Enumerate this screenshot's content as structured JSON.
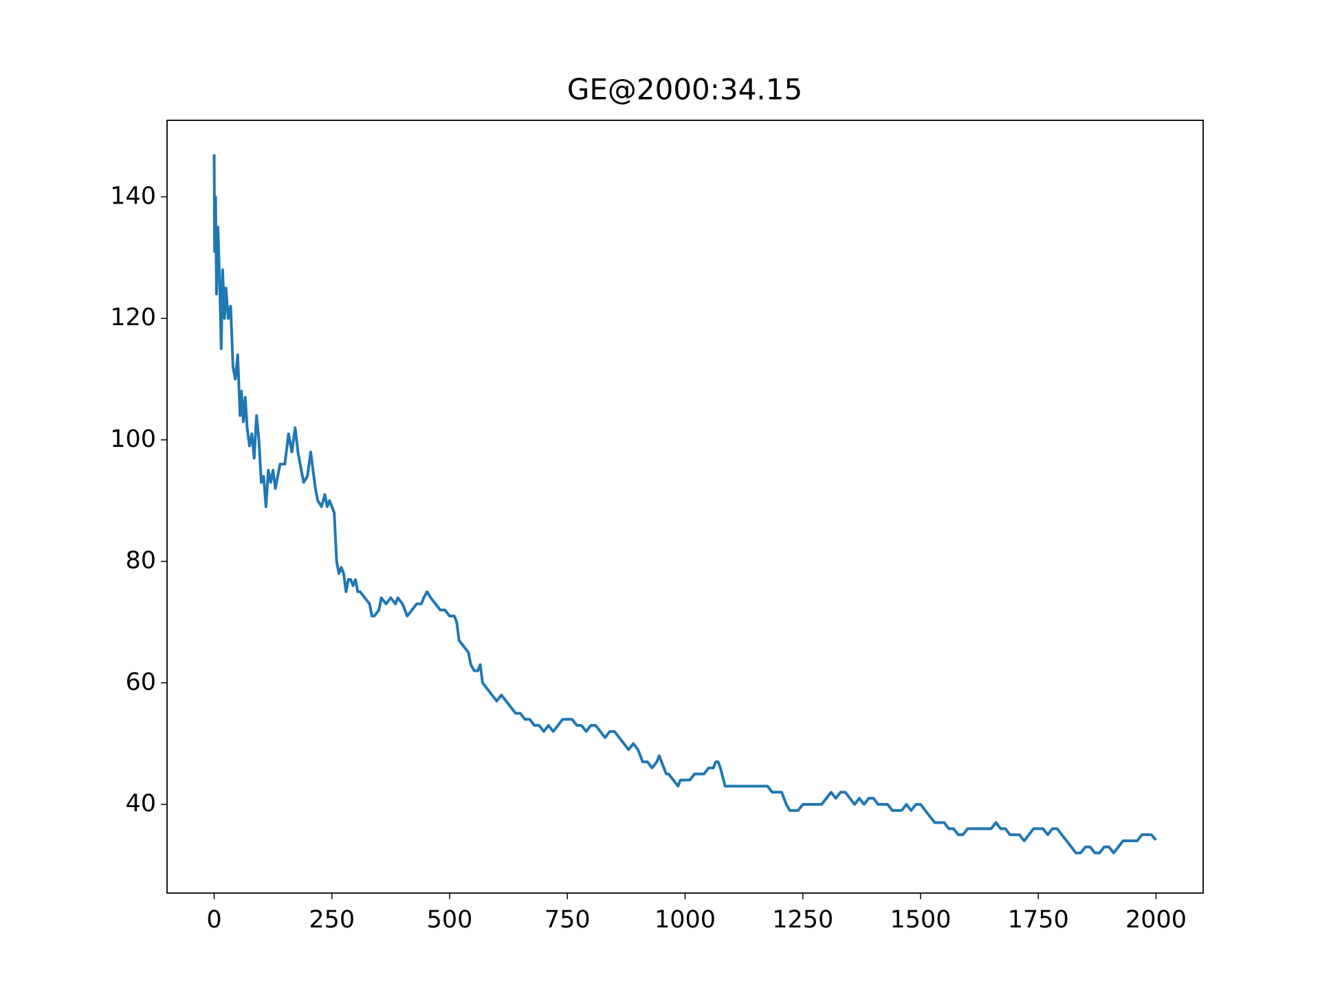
{
  "chart_data": {
    "type": "line",
    "title": "GE@2000:34.15",
    "x": [
      0,
      1,
      3,
      5,
      8,
      12,
      15,
      18,
      22,
      25,
      30,
      35,
      40,
      45,
      50,
      55,
      58,
      62,
      66,
      70,
      75,
      80,
      85,
      90,
      95,
      100,
      105,
      110,
      115,
      120,
      125,
      130,
      140,
      150,
      158,
      165,
      172,
      178,
      185,
      190,
      198,
      205,
      210,
      215,
      220,
      228,
      235,
      240,
      245,
      255,
      260,
      265,
      270,
      275,
      280,
      285,
      290,
      295,
      300,
      305,
      310,
      320,
      330,
      335,
      340,
      350,
      355,
      365,
      375,
      385,
      390,
      400,
      410,
      420,
      430,
      440,
      445,
      452,
      460,
      470,
      480,
      490,
      500,
      510,
      515,
      520,
      530,
      540,
      545,
      552,
      560,
      565,
      570,
      580,
      590,
      600,
      610,
      620,
      630,
      640,
      650,
      660,
      670,
      680,
      690,
      700,
      710,
      720,
      730,
      740,
      750,
      760,
      770,
      780,
      790,
      800,
      810,
      820,
      830,
      840,
      850,
      860,
      870,
      880,
      890,
      900,
      910,
      920,
      930,
      940,
      945,
      955,
      960,
      965,
      975,
      985,
      990,
      1000,
      1010,
      1020,
      1030,
      1040,
      1050,
      1060,
      1065,
      1070,
      1075,
      1085,
      1095,
      1105,
      1115,
      1125,
      1135,
      1145,
      1160,
      1175,
      1185,
      1195,
      1205,
      1215,
      1222,
      1230,
      1240,
      1250,
      1260,
      1270,
      1280,
      1290,
      1300,
      1310,
      1320,
      1330,
      1340,
      1350,
      1360,
      1370,
      1380,
      1390,
      1400,
      1410,
      1420,
      1430,
      1440,
      1450,
      1460,
      1470,
      1480,
      1490,
      1500,
      1510,
      1520,
      1530,
      1540,
      1550,
      1560,
      1570,
      1580,
      1590,
      1600,
      1610,
      1620,
      1630,
      1640,
      1650,
      1660,
      1670,
      1680,
      1690,
      1700,
      1710,
      1720,
      1730,
      1740,
      1750,
      1760,
      1770,
      1780,
      1790,
      1800,
      1810,
      1820,
      1830,
      1840,
      1850,
      1860,
      1870,
      1880,
      1890,
      1900,
      1910,
      1920,
      1930,
      1940,
      1950,
      1960,
      1970,
      1980,
      1990,
      2000
    ],
    "series": [
      {
        "color": "#1f77b4",
        "values": [
          147,
          131,
          140,
          124,
          135,
          125,
          115,
          128,
          120,
          125,
          120,
          122,
          112,
          110,
          114,
          104,
          108,
          103,
          107,
          102,
          99,
          101,
          97,
          104,
          100,
          93,
          94,
          89,
          95,
          93,
          95,
          92,
          96,
          96,
          101,
          98,
          102,
          98,
          95,
          93,
          94,
          98,
          95,
          92,
          90,
          89,
          91,
          89,
          90,
          88,
          80,
          78,
          79,
          78,
          75,
          77,
          77,
          76,
          77,
          75,
          75,
          74,
          73,
          71,
          71,
          72,
          74,
          73,
          74,
          73,
          74,
          73,
          71,
          72,
          73,
          73,
          74,
          75,
          74,
          73,
          72,
          72,
          71,
          71,
          70,
          67,
          66,
          65,
          63,
          62,
          62,
          63,
          60,
          59,
          58,
          57,
          58,
          57,
          56,
          55,
          55,
          54,
          54,
          53,
          53,
          52,
          53,
          52,
          53,
          54,
          54,
          54,
          53,
          53,
          52,
          53,
          53,
          52,
          51,
          52,
          52,
          51,
          50,
          49,
          50,
          49,
          47,
          47,
          46,
          47,
          48,
          46,
          45,
          45,
          44,
          43,
          44,
          44,
          44,
          45,
          45,
          45,
          46,
          46,
          47,
          47,
          46,
          43,
          43,
          43,
          43,
          43,
          43,
          43,
          43,
          43,
          42,
          42,
          42,
          40,
          39,
          39,
          39,
          40,
          40,
          40,
          40,
          40,
          41,
          42,
          41,
          42,
          42,
          41,
          40,
          41,
          40,
          41,
          41,
          40,
          40,
          40,
          39,
          39,
          39,
          40,
          39,
          40,
          40,
          39,
          38,
          37,
          37,
          37,
          36,
          36,
          35,
          35,
          36,
          36,
          36,
          36,
          36,
          36,
          37,
          36,
          36,
          35,
          35,
          35,
          34,
          35,
          36,
          36,
          36,
          35,
          36,
          36,
          35,
          34,
          33,
          32,
          32,
          33,
          33,
          32,
          32,
          33,
          33,
          32,
          33,
          34,
          34,
          34,
          34,
          35,
          35,
          35,
          34.15
        ]
      }
    ],
    "xlim": [
      -100,
      2100
    ],
    "ylim": [
      25.4,
      152.6
    ],
    "xticks": [
      0,
      250,
      500,
      750,
      1000,
      1250,
      1500,
      1750,
      2000
    ],
    "yticks": [
      40,
      60,
      80,
      100,
      120,
      140
    ]
  }
}
